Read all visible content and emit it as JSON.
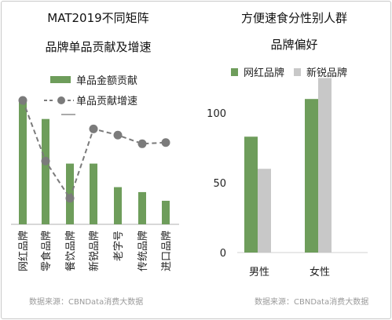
{
  "colors": {
    "green": "#6e9d5b",
    "gray": "#c8c8c8",
    "dot": "#7b7b7b",
    "axis": "#b0b0b0"
  },
  "chart_data": [
    {
      "type": "bar",
      "title_line1": "MAT2019不同矩阵",
      "title_line2": "品牌单品贡献及增速",
      "categories": [
        "网红品牌",
        "零食品牌",
        "餐饮品牌",
        "新锐品牌",
        "老字号",
        "传统品牌",
        "进口品牌"
      ],
      "series": [
        {
          "name": "单品金额贡献",
          "type": "bar",
          "values": [
            100,
            85,
            49,
            49,
            30,
            26,
            19
          ]
        },
        {
          "name": "单品贡献增速",
          "type": "line",
          "style": "dashed",
          "values": [
            100,
            51,
            21,
            77,
            72,
            65,
            66
          ]
        }
      ],
      "ylim": [
        0,
        110
      ],
      "source": "数据来源：CBNData消费大数据"
    },
    {
      "type": "bar",
      "title_line1": "方便速食分性别人群",
      "title_line2": "品牌偏好",
      "categories": [
        "男性",
        "女性"
      ],
      "series": [
        {
          "name": "网红品牌",
          "values": [
            83,
            110
          ]
        },
        {
          "name": "新锐品牌",
          "values": [
            60,
            125
          ]
        }
      ],
      "yticks": [
        0,
        50,
        100
      ],
      "ylim": [
        0,
        130
      ],
      "source": "数据来源：CBNData消费大数据"
    }
  ]
}
